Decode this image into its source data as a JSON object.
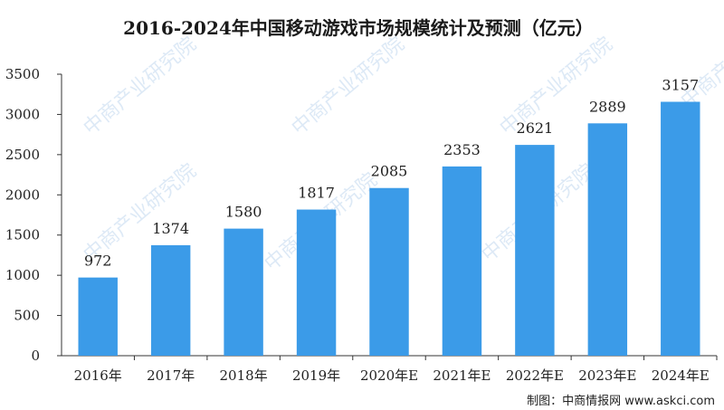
{
  "chart_data": {
    "type": "bar",
    "title": "2016-2024年中国移动游戏市场规模统计及预测（亿元）",
    "categories": [
      "2016年",
      "2017年",
      "2018年",
      "2019年",
      "2020年E",
      "2021年E",
      "2022年E",
      "2023年E",
      "2024年E"
    ],
    "values": [
      972,
      1374,
      1580,
      1817,
      2085,
      2353,
      2621,
      2889,
      3157
    ],
    "ylim": [
      0,
      3500
    ],
    "yticks": [
      0,
      500,
      1000,
      1500,
      2000,
      2500,
      3000,
      3500
    ],
    "grid": false,
    "bar_color": "#3b9be8",
    "data_labels": true
  },
  "source_note": "制图：中商情报网 www.askci.com",
  "watermark": "中商产业研究院"
}
